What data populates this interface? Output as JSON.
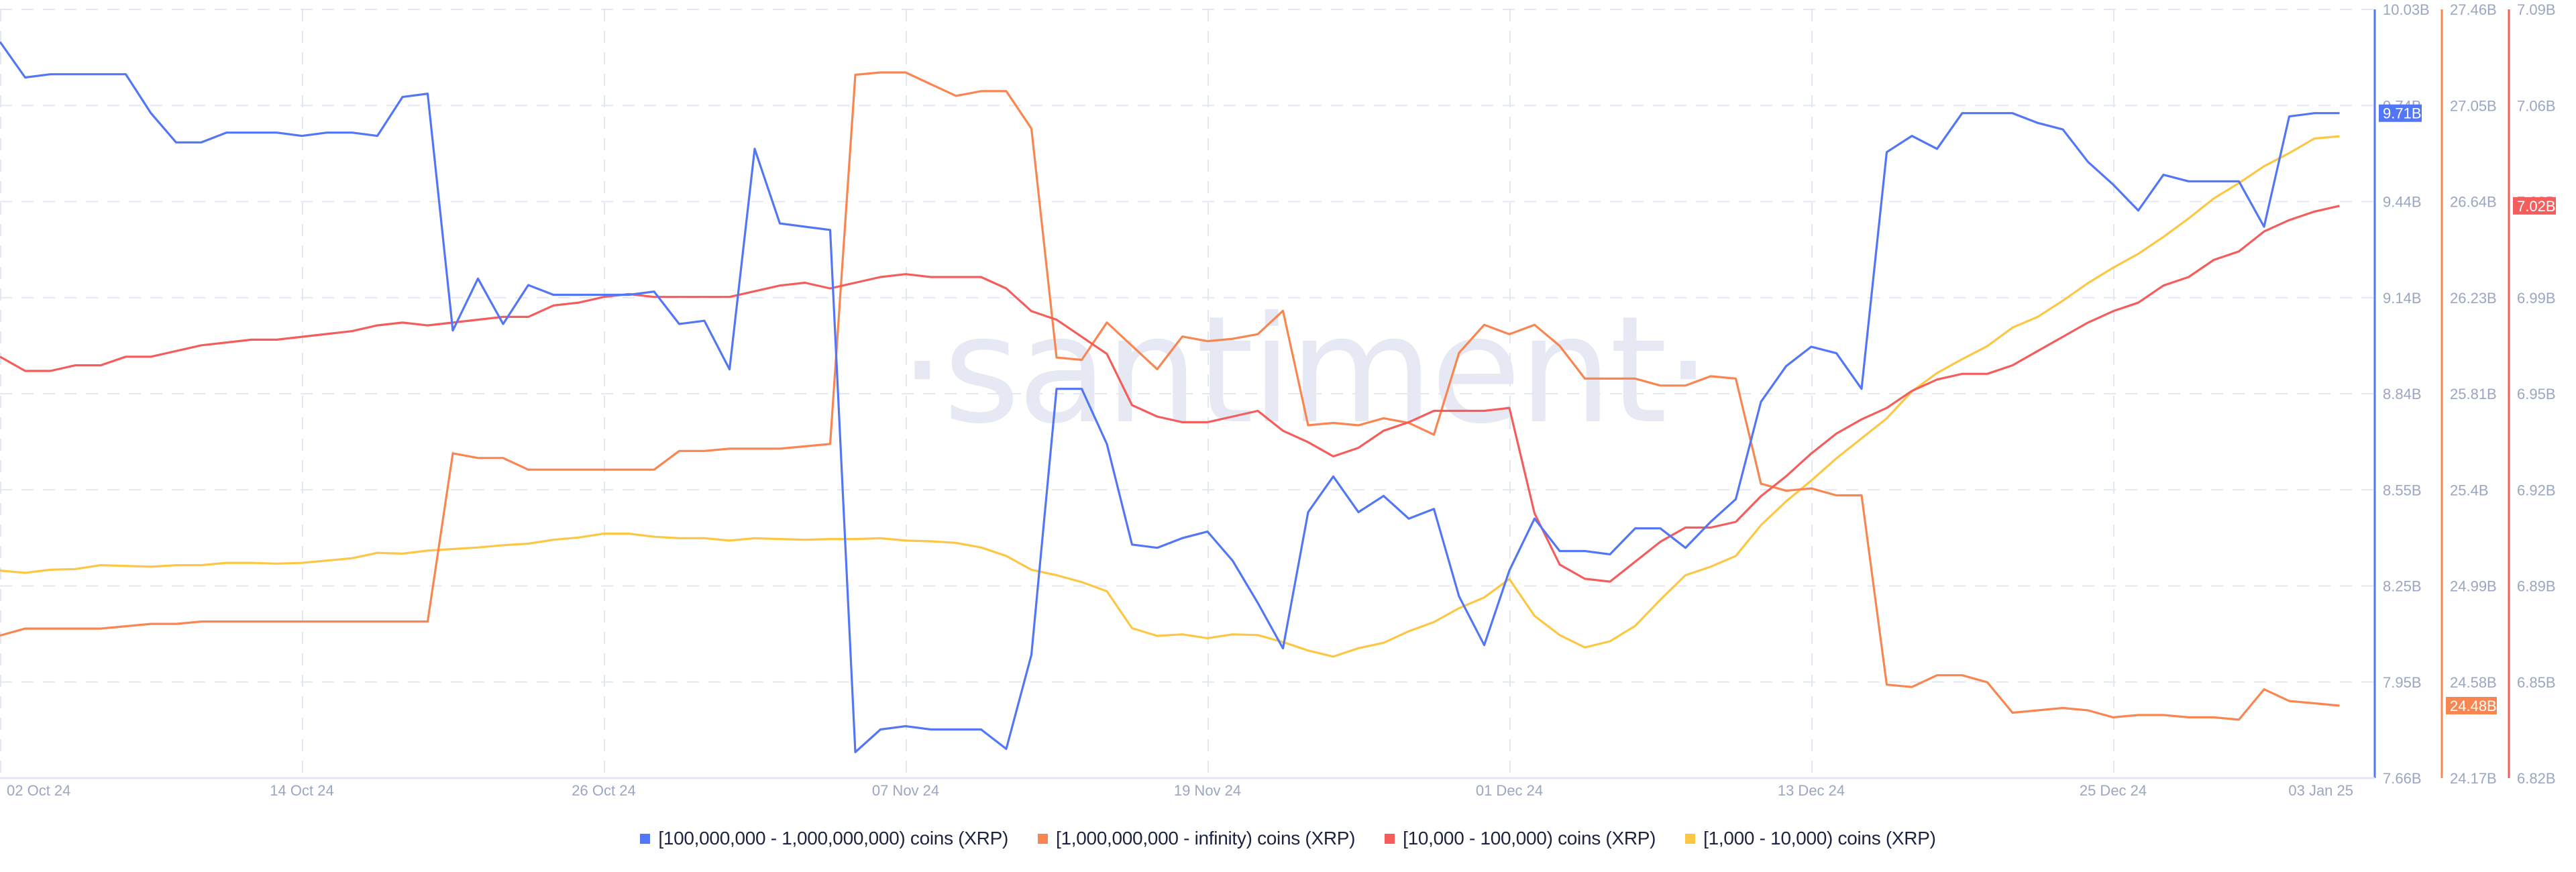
{
  "watermark": "·santiment·",
  "legend": [
    {
      "label": "[100,000,000 - 1,000,000,000) coins (XRP)",
      "color": "#5276f6"
    },
    {
      "label": "[1,000,000,000 - infinity) coins (XRP)",
      "color": "#f98550"
    },
    {
      "label": "[10,000 - 100,000) coins (XRP)",
      "color": "#f55d5d"
    },
    {
      "label": "[1,000 - 10,000) coins (XRP)",
      "color": "#fcc745"
    }
  ],
  "chart_data": {
    "type": "line",
    "title": "",
    "xlabel": "",
    "ylabel": "",
    "grid": true,
    "legend_position": "bottom",
    "x_start": "2024-10-02",
    "x_end": "2025-01-03",
    "x_step": "1 day",
    "x_ticks": [
      "02 Oct 24",
      "14 Oct 24",
      "26 Oct 24",
      "07 Nov 24",
      "19 Nov 24",
      "01 Dec 24",
      "13 Dec 24",
      "25 Dec 24",
      "03 Jan 25"
    ],
    "x_tick_index": [
      0,
      12,
      24,
      36,
      48,
      60,
      72,
      84,
      93
    ],
    "axes": [
      {
        "id": "blue",
        "color": "#5276f6",
        "ylim": [
          7.66,
          10.03
        ],
        "ticks": [
          "10.03B",
          "9.74B",
          "9.44B",
          "9.14B",
          "8.84B",
          "8.55B",
          "8.25B",
          "7.95B",
          "7.66B"
        ],
        "last_value_badge": "9.71B"
      },
      {
        "id": "orange",
        "color": "#f98550",
        "ylim": [
          24.17,
          27.46
        ],
        "ticks": [
          "27.46B",
          "27.05B",
          "26.64B",
          "26.23B",
          "25.81B",
          "25.4B",
          "24.99B",
          "24.58B",
          "24.17B"
        ],
        "last_value_badge": "24.48B"
      },
      {
        "id": "red",
        "color": "#f55d5d",
        "ylim": [
          6.82,
          7.09
        ],
        "ticks": [
          "7.09B",
          "7.06B",
          "7.02B",
          "6.99B",
          "6.95B",
          "6.92B",
          "6.89B",
          "6.85B",
          "6.82B"
        ],
        "last_value_badge": "7.02B"
      }
    ],
    "series": [
      {
        "name": "[100,000,000 - 1,000,000,000) coins (XRP)",
        "axis": "blue",
        "unit": "B XRP",
        "color": "#5276f6",
        "values": [
          9.93,
          9.82,
          9.83,
          9.83,
          9.83,
          9.83,
          9.71,
          9.62,
          9.62,
          9.65,
          9.65,
          9.65,
          9.64,
          9.65,
          9.65,
          9.64,
          9.76,
          9.77,
          9.04,
          9.2,
          9.06,
          9.18,
          9.15,
          9.15,
          9.15,
          9.15,
          9.16,
          9.06,
          9.07,
          8.92,
          9.6,
          9.37,
          9.36,
          9.35,
          7.74,
          7.81,
          7.82,
          7.81,
          7.81,
          7.81,
          7.75,
          8.04,
          8.86,
          8.86,
          8.69,
          8.38,
          8.37,
          8.4,
          8.42,
          8.33,
          8.2,
          8.06,
          8.48,
          8.59,
          8.48,
          8.53,
          8.46,
          8.49,
          8.22,
          8.07,
          8.3,
          8.46,
          8.36,
          8.36,
          8.35,
          8.43,
          8.43,
          8.37,
          8.45,
          8.52,
          8.82,
          8.93,
          8.99,
          8.97,
          8.86,
          9.59,
          9.64,
          9.6,
          9.71,
          9.71,
          9.71,
          9.68,
          9.66,
          9.56,
          9.49,
          9.41,
          9.52,
          9.5,
          9.5,
          9.5,
          9.36,
          9.7,
          9.71,
          9.71
        ]
      },
      {
        "name": "[1,000,000,000 - infinity) coins (XRP)",
        "axis": "orange",
        "unit": "B XRP",
        "color": "#f98550",
        "values": [
          24.78,
          24.81,
          24.81,
          24.81,
          24.81,
          24.82,
          24.83,
          24.83,
          24.84,
          24.84,
          24.84,
          24.84,
          24.84,
          24.84,
          24.84,
          24.84,
          24.84,
          24.84,
          25.56,
          25.54,
          25.54,
          25.49,
          25.49,
          25.49,
          25.49,
          25.49,
          25.49,
          25.57,
          25.57,
          25.58,
          25.58,
          25.58,
          25.59,
          25.6,
          27.18,
          27.19,
          27.19,
          27.14,
          27.09,
          27.11,
          27.11,
          26.95,
          25.97,
          25.96,
          26.12,
          26.02,
          25.92,
          26.06,
          26.04,
          26.05,
          26.07,
          26.17,
          25.68,
          25.69,
          25.68,
          25.71,
          25.69,
          25.64,
          25.99,
          26.11,
          26.07,
          26.11,
          26.02,
          25.88,
          25.88,
          25.88,
          25.85,
          25.85,
          25.89,
          25.88,
          25.43,
          25.4,
          25.41,
          25.38,
          25.38,
          24.57,
          24.56,
          24.61,
          24.61,
          24.58,
          24.45,
          24.46,
          24.47,
          24.46,
          24.43,
          24.44,
          24.44,
          24.43,
          24.43,
          24.42,
          24.55,
          24.5,
          24.49,
          24.48
        ]
      },
      {
        "name": "[10,000 - 100,000) coins (XRP)",
        "axis": "red",
        "unit": "B XRP",
        "color": "#f55d5d",
        "values": [
          6.968,
          6.963,
          6.963,
          6.965,
          6.965,
          6.968,
          6.968,
          6.97,
          6.972,
          6.973,
          6.974,
          6.974,
          6.975,
          6.976,
          6.977,
          6.979,
          6.98,
          6.979,
          6.98,
          6.981,
          6.982,
          6.982,
          6.986,
          6.987,
          6.989,
          6.99,
          6.989,
          6.989,
          6.989,
          6.989,
          6.991,
          6.993,
          6.994,
          6.992,
          6.994,
          6.996,
          6.997,
          6.996,
          6.996,
          6.996,
          6.992,
          6.984,
          6.981,
          6.975,
          6.969,
          6.951,
          6.947,
          6.945,
          6.945,
          6.947,
          6.949,
          6.942,
          6.938,
          6.933,
          6.936,
          6.942,
          6.945,
          6.949,
          6.949,
          6.949,
          6.95,
          6.913,
          6.895,
          6.89,
          6.889,
          6.896,
          6.903,
          6.908,
          6.908,
          6.91,
          6.919,
          6.926,
          6.934,
          6.941,
          6.946,
          6.95,
          6.956,
          6.96,
          6.962,
          6.962,
          6.965,
          6.97,
          6.975,
          6.98,
          6.984,
          6.987,
          6.993,
          6.996,
          7.002,
          7.005,
          7.012,
          7.016,
          7.019,
          7.021
        ]
      },
      {
        "name": "[1,000 - 10,000) coins (XRP)",
        "axis": "hidden",
        "unit": "normalized (axis not shown)",
        "color": "#fcc745",
        "ylim": [
          0,
          1
        ],
        "values": [
          0.27,
          0.267,
          0.271,
          0.272,
          0.277,
          0.276,
          0.275,
          0.277,
          0.277,
          0.28,
          0.28,
          0.279,
          0.28,
          0.283,
          0.286,
          0.293,
          0.292,
          0.296,
          0.298,
          0.3,
          0.303,
          0.305,
          0.31,
          0.313,
          0.318,
          0.318,
          0.314,
          0.312,
          0.312,
          0.309,
          0.312,
          0.311,
          0.31,
          0.311,
          0.311,
          0.312,
          0.309,
          0.308,
          0.306,
          0.3,
          0.289,
          0.271,
          0.264,
          0.255,
          0.243,
          0.195,
          0.185,
          0.187,
          0.182,
          0.187,
          0.186,
          0.177,
          0.166,
          0.158,
          0.169,
          0.176,
          0.191,
          0.203,
          0.221,
          0.235,
          0.259,
          0.211,
          0.186,
          0.17,
          0.178,
          0.198,
          0.232,
          0.264,
          0.275,
          0.289,
          0.329,
          0.36,
          0.387,
          0.416,
          0.442,
          0.468,
          0.503,
          0.527,
          0.545,
          0.562,
          0.586,
          0.6,
          0.621,
          0.644,
          0.664,
          0.682,
          0.704,
          0.728,
          0.754,
          0.774,
          0.796,
          0.813,
          0.832,
          0.835
        ]
      }
    ]
  }
}
